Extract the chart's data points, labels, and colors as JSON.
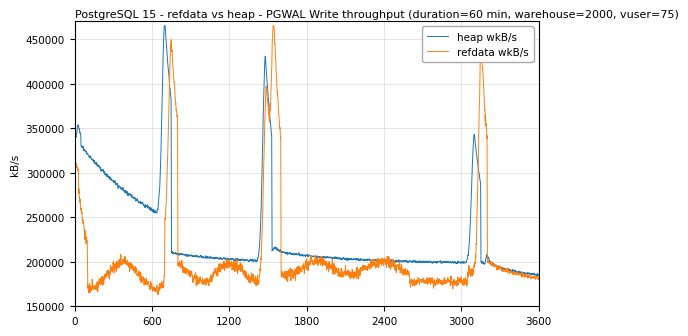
{
  "title": "PostgreSQL 15 - refdata vs heap - PGWAL Write throughput (duration=60 min, warehouse=2000, vuser=75)",
  "ylabel": "kB/s",
  "legend_heap": "heap wkB/s",
  "legend_refdata": "refdata wkB/s",
  "heap_color": "#1f77b4",
  "refdata_color": "#ff7f0e",
  "ylim_min": 150000,
  "ylim_max": 470000,
  "xlim_min": 0,
  "xlim_max": 3600,
  "title_fontsize": 8.0,
  "axis_fontsize": 7.5,
  "legend_fontsize": 7.5,
  "linewidth": 0.7
}
